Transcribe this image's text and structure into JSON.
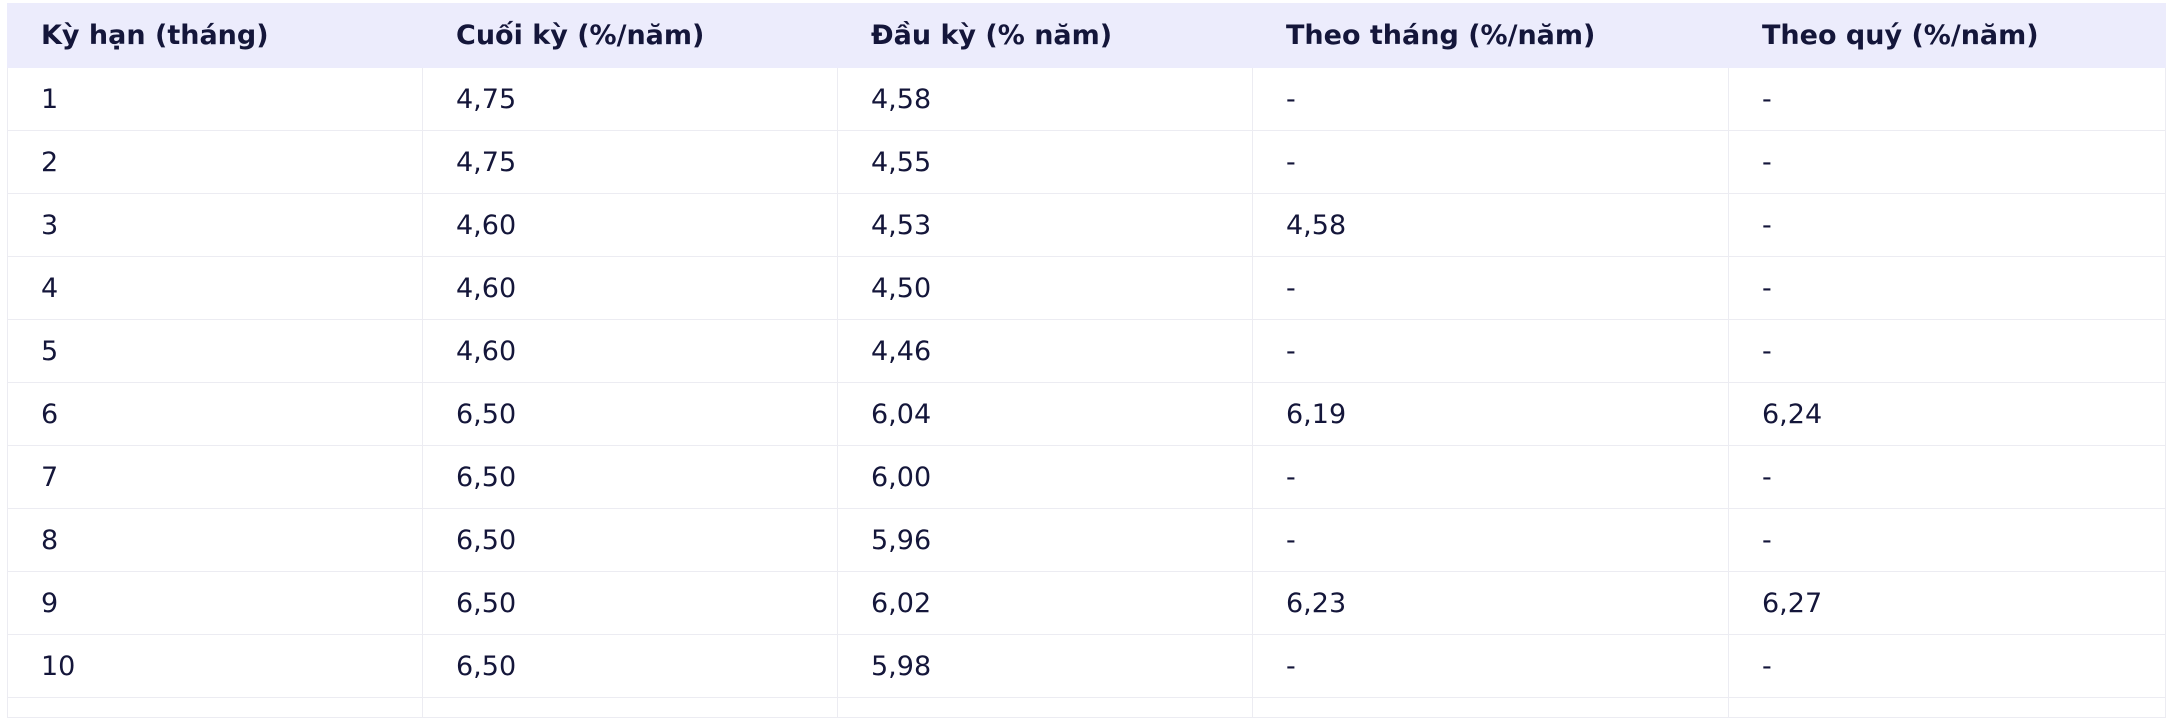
{
  "table": {
    "header": [
      "Kỳ hạn (tháng)",
      "Cuối kỳ (%/năm)",
      "Đầu kỳ (% năm)",
      "Theo tháng (%/năm)",
      "Theo quý (%/năm)"
    ],
    "rows": [
      [
        "1",
        "4,75",
        "4,58",
        "-",
        "-"
      ],
      [
        "2",
        "4,75",
        "4,55",
        "-",
        "-"
      ],
      [
        "3",
        "4,60",
        "4,53",
        "4,58",
        "-"
      ],
      [
        "4",
        "4,60",
        "4,50",
        "-",
        "-"
      ],
      [
        "5",
        "4,60",
        "4,46",
        "-",
        "-"
      ],
      [
        "6",
        "6,50",
        "6,04",
        "6,19",
        "6,24"
      ],
      [
        "7",
        "6,50",
        "6,00",
        "-",
        "-"
      ],
      [
        "8",
        "6,50",
        "5,96",
        "-",
        "-"
      ],
      [
        "9",
        "6,50",
        "6,02",
        "6,23",
        "6,27"
      ],
      [
        "10",
        "6,50",
        "5,98",
        "-",
        "-"
      ]
    ]
  }
}
